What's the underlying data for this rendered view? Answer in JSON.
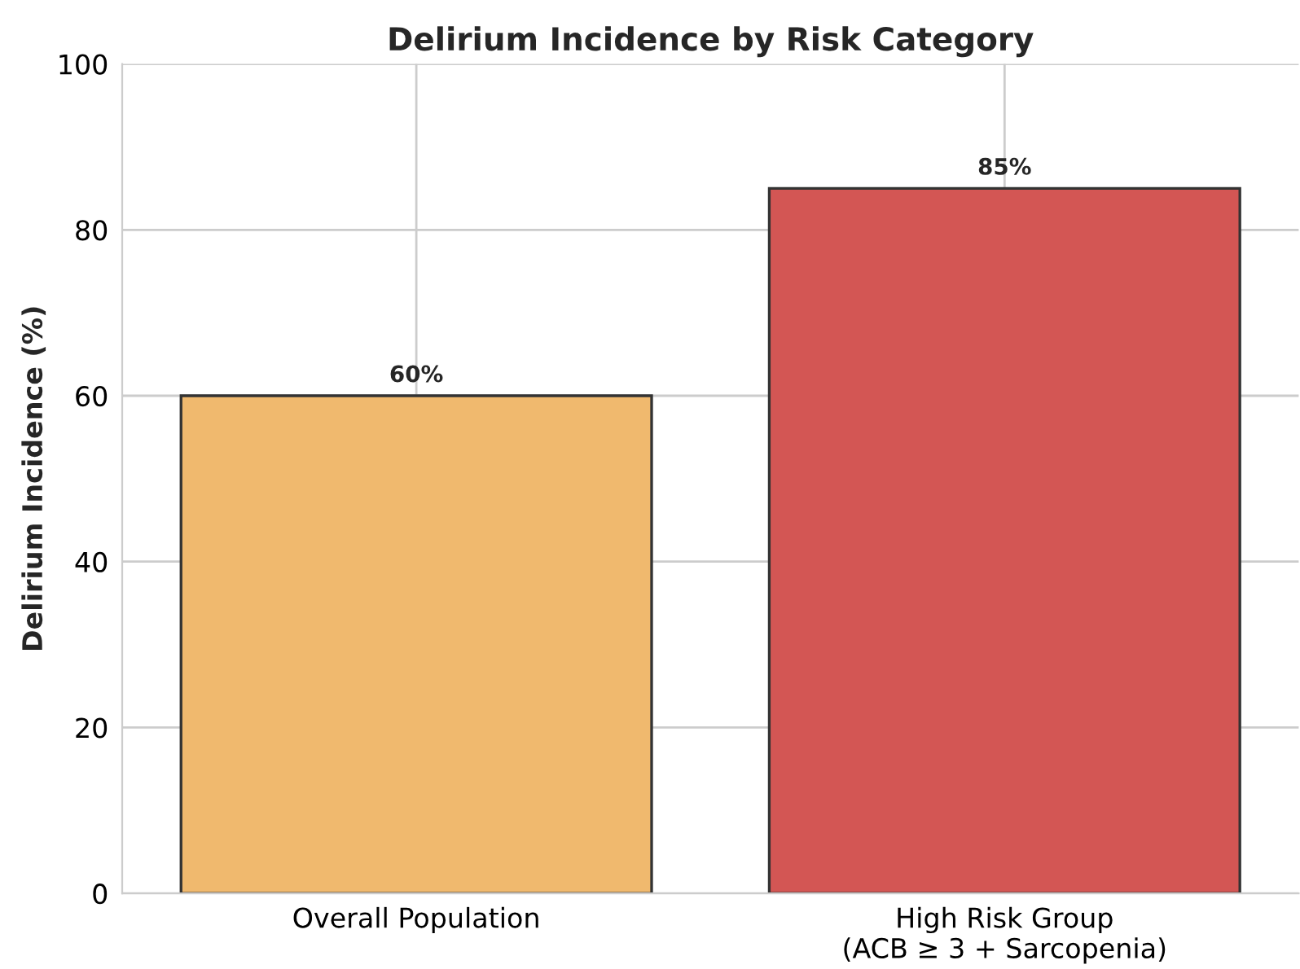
{
  "chart_data": {
    "type": "bar",
    "title": "Delirium Incidence by Risk Category",
    "ylabel": "Delirium Incidence (%)",
    "categories": [
      "Overall Population",
      "High Risk Group\n(ACB ≥ 3 + Sarcopenia)"
    ],
    "values": [
      60,
      85
    ],
    "colors": [
      "#f0b96e",
      "#d35654"
    ],
    "value_labels": [
      "60%",
      "85%"
    ],
    "ylim": [
      0,
      100
    ],
    "yticks": [
      0,
      20,
      40,
      60,
      80,
      100
    ],
    "grid": true
  }
}
